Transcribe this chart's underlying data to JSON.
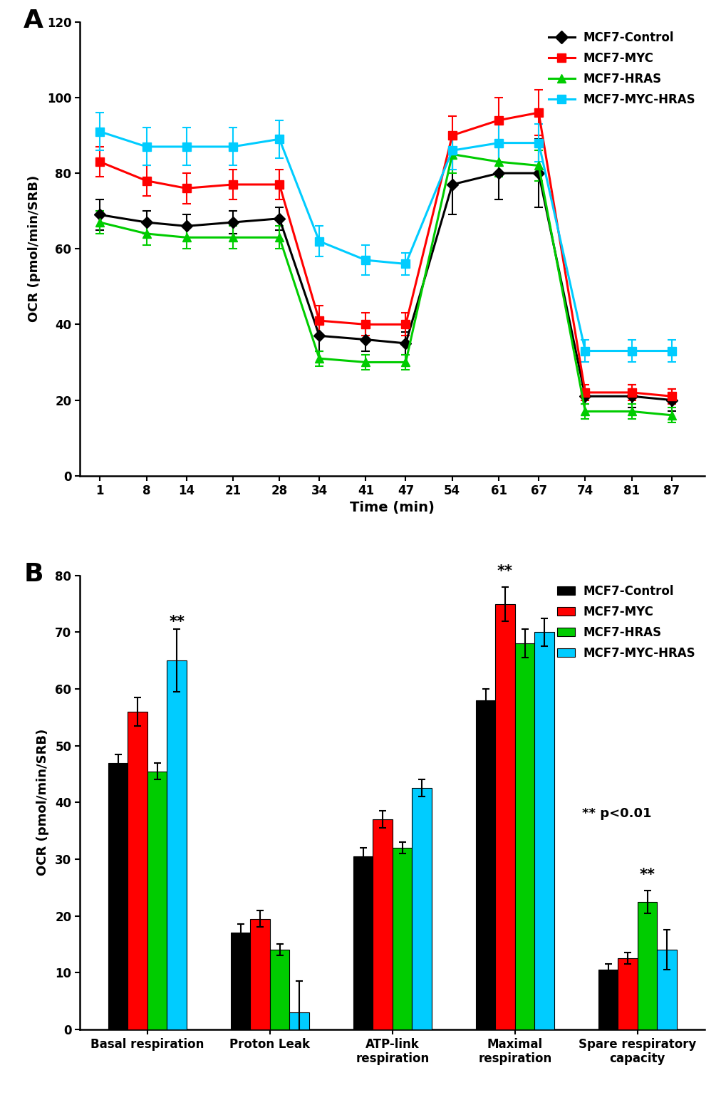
{
  "panel_a": {
    "time_points": [
      1,
      8,
      14,
      21,
      28,
      34,
      41,
      47,
      54,
      61,
      67,
      74,
      81,
      87
    ],
    "series": {
      "MCF7-Control": {
        "color": "#000000",
        "marker": "D",
        "values": [
          69,
          67,
          66,
          67,
          68,
          37,
          36,
          35,
          77,
          80,
          80,
          21,
          21,
          20
        ],
        "errors": [
          4,
          3,
          3,
          3,
          3,
          4,
          3,
          3,
          8,
          7,
          9,
          2,
          3,
          3
        ]
      },
      "MCF7-MYC": {
        "color": "#ff0000",
        "marker": "s",
        "values": [
          83,
          78,
          76,
          77,
          77,
          41,
          40,
          40,
          90,
          94,
          96,
          22,
          22,
          21
        ],
        "errors": [
          4,
          4,
          4,
          4,
          4,
          4,
          3,
          3,
          5,
          6,
          6,
          2,
          2,
          2
        ]
      },
      "MCF7-HRAS": {
        "color": "#00cc00",
        "marker": "^",
        "values": [
          67,
          64,
          63,
          63,
          63,
          31,
          30,
          30,
          85,
          83,
          82,
          17,
          17,
          16
        ],
        "errors": [
          3,
          3,
          3,
          3,
          3,
          2,
          2,
          2,
          5,
          4,
          4,
          2,
          2,
          2
        ]
      },
      "MCF7-MYC-HRAS": {
        "color": "#00ccff",
        "marker": "s",
        "values": [
          91,
          87,
          87,
          87,
          89,
          62,
          57,
          56,
          86,
          88,
          88,
          33,
          33,
          33
        ],
        "errors": [
          5,
          5,
          5,
          5,
          5,
          4,
          4,
          3,
          5,
          5,
          5,
          3,
          3,
          3
        ]
      }
    },
    "ylabel": "OCR (pmol/min/SRB)",
    "xlabel": "Time (min)",
    "ylim": [
      0,
      120
    ],
    "yticks": [
      0,
      20,
      40,
      60,
      80,
      100,
      120
    ]
  },
  "panel_b": {
    "categories": [
      "Basal respiration",
      "Proton Leak",
      "ATP-link\nrespiration",
      "Maximal\nrespiration",
      "Spare respiratory\ncapacity"
    ],
    "series": {
      "MCF7-Control": {
        "color": "#000000",
        "values": [
          47,
          17,
          30.5,
          58,
          10.5
        ],
        "errors": [
          1.5,
          1.5,
          1.5,
          2,
          1
        ]
      },
      "MCF7-MYC": {
        "color": "#ff0000",
        "values": [
          56,
          19.5,
          37,
          75,
          12.5
        ],
        "errors": [
          2.5,
          1.5,
          1.5,
          3,
          1
        ]
      },
      "MCF7-HRAS": {
        "color": "#00cc00",
        "values": [
          45.5,
          14,
          32,
          68,
          22.5
        ],
        "errors": [
          1.5,
          1,
          1,
          2.5,
          2
        ]
      },
      "MCF7-MYC-HRAS": {
        "color": "#00ccff",
        "values": [
          65,
          3,
          42.5,
          70,
          14
        ],
        "errors": [
          5.5,
          5.5,
          1.5,
          2.5,
          3.5
        ]
      }
    },
    "ylabel": "OCR (pmol/min/SRB)",
    "ylim": [
      0,
      80
    ],
    "yticks": [
      0,
      10,
      20,
      30,
      40,
      50,
      60,
      70,
      80
    ],
    "sig_note": "** p<0.01"
  },
  "legend_labels": [
    "MCF7-Control",
    "MCF7-MYC",
    "MCF7-HRAS",
    "MCF7-MYC-HRAS"
  ],
  "legend_colors": [
    "#000000",
    "#ff0000",
    "#00cc00",
    "#00ccff"
  ]
}
